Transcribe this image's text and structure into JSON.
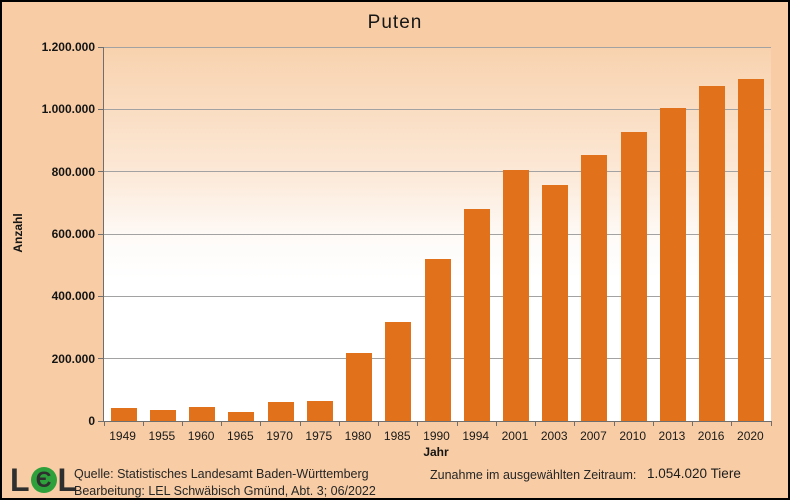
{
  "title": "Puten",
  "colors": {
    "background": "#f8cda5",
    "bar": "#e2711c",
    "plot_gradient_top": "#f8d2ae",
    "plot_gradient_bottom": "#ffffff",
    "gridline": "#a2a2a2",
    "axis": "#6f6f6f",
    "text": "#1a1a1a",
    "logo_green": "#2da03c",
    "logo_gray": "#2f2f2f"
  },
  "chart_data": {
    "type": "bar",
    "title": "Puten",
    "xlabel": "Jahr",
    "ylabel": "Anzahl",
    "ylim": [
      0,
      1200000
    ],
    "ytick_step": 200000,
    "ytick_labels": [
      "0",
      "200.000",
      "400.000",
      "600.000",
      "800.000",
      "1.000.000",
      "1.200.000"
    ],
    "grid": true,
    "legend": false,
    "categories": [
      "1949",
      "1955",
      "1960",
      "1965",
      "1970",
      "1975",
      "1980",
      "1985",
      "1990",
      "1994",
      "2001",
      "2003",
      "2007",
      "2010",
      "2013",
      "2016",
      "2020"
    ],
    "values": [
      42297,
      36000,
      45000,
      30000,
      61000,
      65000,
      217000,
      318000,
      520000,
      680000,
      806000,
      758000,
      854000,
      928000,
      1003000,
      1076000,
      1096317
    ]
  },
  "footer": {
    "logo_left": "L",
    "logo_middle": "Є",
    "logo_right": "L",
    "source_line1": "Quelle: Statistisches Landesamt Baden-Württemberg",
    "source_line2": "Bearbeitung: LEL Schwäbisch Gmünd, Abt. 3; 06/2022",
    "summary_label": "Zunahme im ausgewählten Zeitraum:",
    "summary_value": "1.054.020 Tiere"
  }
}
